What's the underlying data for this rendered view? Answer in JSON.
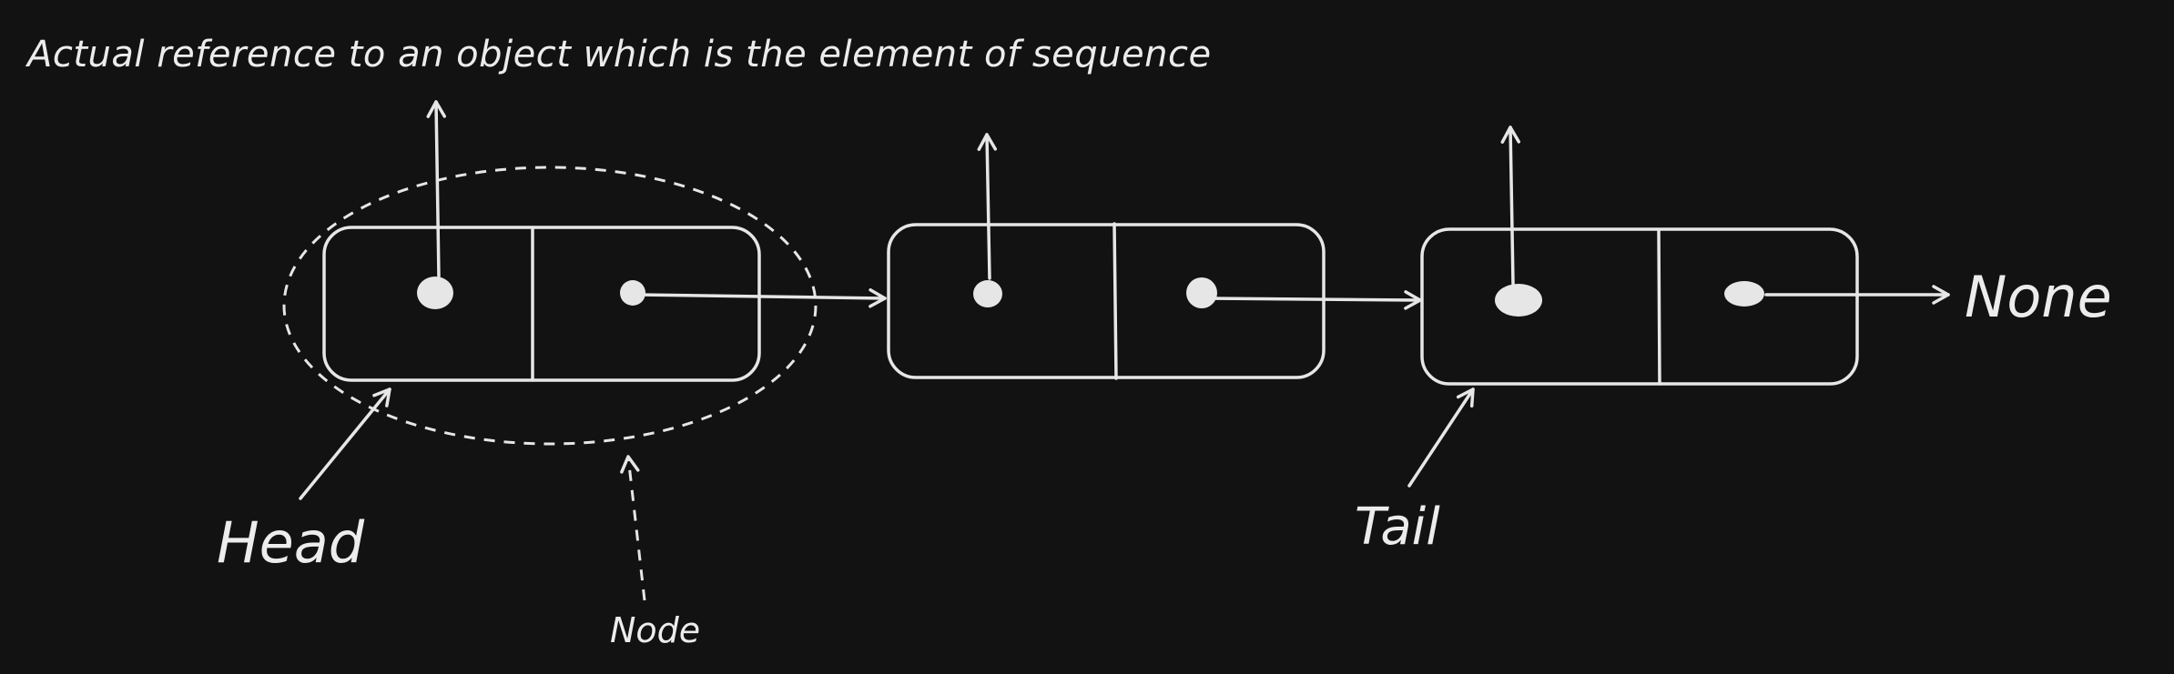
{
  "diagram": {
    "top_note": "Actual reference to an object which is the element of sequence",
    "head_label": "Head",
    "tail_label": "Tail",
    "none_label": "None",
    "node_label": "Node",
    "node_count": 3
  },
  "colors": {
    "background": "#121212",
    "stroke": "#e6e6e6",
    "text": "#ececec"
  }
}
